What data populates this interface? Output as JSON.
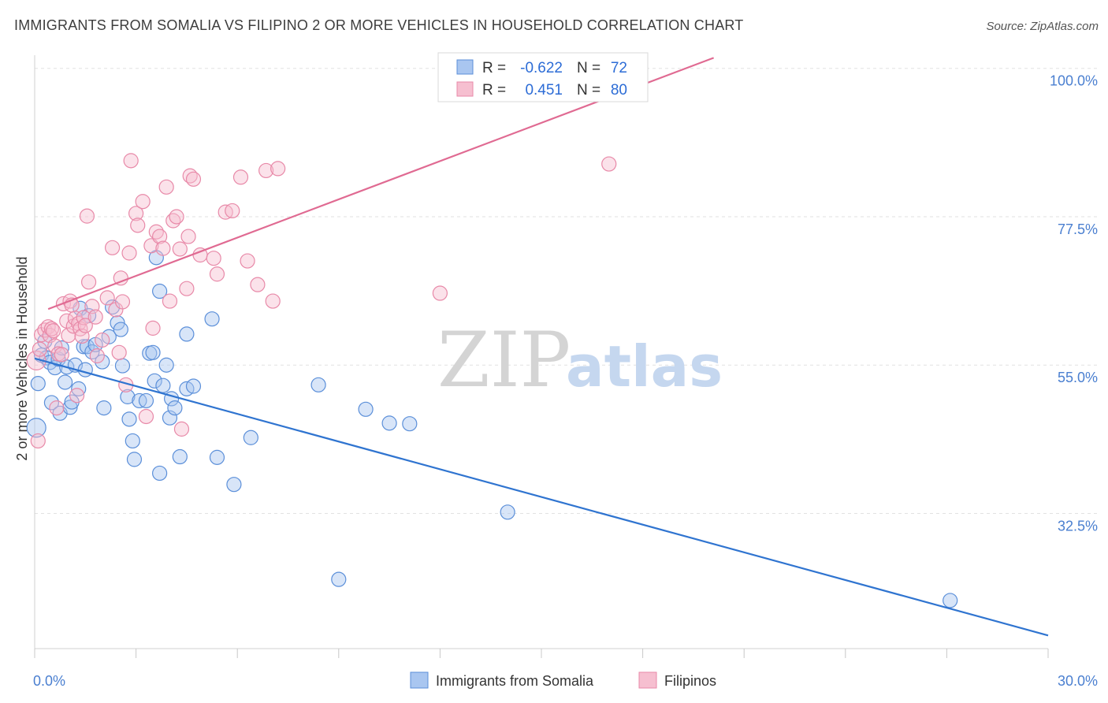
{
  "header": {
    "title": "IMMIGRANTS FROM SOMALIA VS FILIPINO 2 OR MORE VEHICLES IN HOUSEHOLD CORRELATION CHART",
    "source": "Source: ZipAtlas.com"
  },
  "watermark": {
    "zip": "ZIP",
    "atlas": "atlas"
  },
  "colors": {
    "somalia_fill": "#a9c6f0",
    "somalia_stroke": "#5b8fd9",
    "somalia_line": "#2f74d0",
    "filipino_fill": "#f6bfd0",
    "filipino_stroke": "#e889a8",
    "filipino_line": "#e06a92",
    "grid": "#e2e2e2",
    "tick_text": "#4a7fd0"
  },
  "legend": {
    "rows": [
      {
        "r_label": "R =",
        "r_value": "-0.622",
        "n_label": "N =",
        "n_value": "72"
      },
      {
        "r_label": "R =",
        "r_value": "0.451",
        "n_label": "N =",
        "n_value": "80"
      }
    ]
  },
  "chart_data": {
    "type": "scatter",
    "title": "IMMIGRANTS FROM SOMALIA VS FILIPINO 2 OR MORE VEHICLES IN HOUSEHOLD CORRELATION CHART",
    "xlabel": "",
    "ylabel": "2 or more Vehicles in Household",
    "xlim": [
      0,
      30
    ],
    "ylim": [
      12,
      102
    ],
    "x_tick_labels": [
      {
        "value": 0,
        "label": "0.0%"
      },
      {
        "value": 30,
        "label": "30.0%"
      }
    ],
    "y_tick_labels": [
      {
        "value": 100,
        "label": "100.0%"
      },
      {
        "value": 77.5,
        "label": "77.5%"
      },
      {
        "value": 55,
        "label": "55.0%"
      },
      {
        "value": 32.5,
        "label": "32.5%"
      }
    ],
    "grid": true,
    "legend_position": "top-center",
    "series": [
      {
        "name": "Immigrants from Somalia",
        "r": -0.622,
        "n": 72,
        "trend": {
          "x": [
            0,
            30
          ],
          "y": [
            56,
            14
          ]
        },
        "points": [
          [
            0.05,
            45.5
          ],
          [
            0.1,
            52.2
          ],
          [
            0.2,
            56.5
          ],
          [
            0.3,
            58.6
          ],
          [
            0.35,
            56.1
          ],
          [
            0.45,
            55.4
          ],
          [
            0.5,
            49.3
          ],
          [
            0.6,
            54.6
          ],
          [
            0.7,
            55.9
          ],
          [
            0.75,
            47.7
          ],
          [
            0.8,
            57.6
          ],
          [
            0.9,
            52.4
          ],
          [
            0.95,
            54.7
          ],
          [
            1.05,
            48.6
          ],
          [
            1.1,
            49.4
          ],
          [
            1.2,
            55.0
          ],
          [
            1.3,
            51.4
          ],
          [
            1.35,
            63.6
          ],
          [
            1.45,
            57.8
          ],
          [
            1.5,
            54.3
          ],
          [
            1.55,
            57.8
          ],
          [
            1.6,
            62.5
          ],
          [
            1.7,
            57.0
          ],
          [
            1.8,
            58.1
          ],
          [
            2.0,
            55.5
          ],
          [
            2.05,
            48.5
          ],
          [
            2.2,
            59.3
          ],
          [
            2.3,
            63.8
          ],
          [
            2.45,
            61.4
          ],
          [
            2.55,
            60.4
          ],
          [
            2.6,
            54.9
          ],
          [
            2.75,
            50.2
          ],
          [
            2.8,
            46.8
          ],
          [
            2.9,
            43.5
          ],
          [
            2.95,
            40.7
          ],
          [
            3.1,
            49.6
          ],
          [
            3.3,
            49.6
          ],
          [
            3.4,
            56.8
          ],
          [
            3.5,
            56.9
          ],
          [
            3.55,
            52.6
          ],
          [
            3.6,
            71.3
          ],
          [
            3.7,
            66.2
          ],
          [
            3.7,
            38.6
          ],
          [
            3.8,
            51.9
          ],
          [
            3.9,
            55.0
          ],
          [
            4.0,
            47.0
          ],
          [
            4.05,
            49.9
          ],
          [
            4.15,
            48.5
          ],
          [
            4.3,
            41.1
          ],
          [
            4.5,
            59.7
          ],
          [
            4.5,
            51.4
          ],
          [
            4.7,
            51.8
          ],
          [
            5.25,
            62.0
          ],
          [
            5.4,
            41.0
          ],
          [
            5.9,
            36.9
          ],
          [
            6.4,
            44.0
          ],
          [
            8.4,
            52.0
          ],
          [
            9.0,
            22.5
          ],
          [
            9.8,
            48.3
          ],
          [
            10.5,
            46.2
          ],
          [
            11.1,
            46.1
          ],
          [
            14.0,
            32.7
          ],
          [
            27.1,
            19.3
          ]
        ]
      },
      {
        "name": "Filipinos",
        "r": 0.451,
        "n": 80,
        "trend": {
          "x": [
            0.4,
            20.1
          ],
          "y": [
            63.5,
            101.6
          ]
        },
        "points": [
          [
            0.05,
            55.7
          ],
          [
            0.1,
            43.5
          ],
          [
            0.15,
            57.4
          ],
          [
            0.2,
            59.6
          ],
          [
            0.3,
            60.3
          ],
          [
            0.4,
            60.8
          ],
          [
            0.45,
            59.5
          ],
          [
            0.5,
            60.5
          ],
          [
            0.55,
            60.2
          ],
          [
            0.6,
            57.9
          ],
          [
            0.65,
            48.5
          ],
          [
            0.7,
            56.7
          ],
          [
            0.8,
            56.6
          ],
          [
            0.85,
            64.3
          ],
          [
            0.95,
            61.7
          ],
          [
            1.0,
            59.5
          ],
          [
            1.05,
            64.7
          ],
          [
            1.1,
            64.1
          ],
          [
            1.15,
            60.9
          ],
          [
            1.2,
            62.1
          ],
          [
            1.25,
            50.4
          ],
          [
            1.3,
            61.3
          ],
          [
            1.35,
            60.5
          ],
          [
            1.4,
            59.4
          ],
          [
            1.45,
            62.2
          ],
          [
            1.5,
            61.0
          ],
          [
            1.55,
            77.6
          ],
          [
            1.6,
            67.6
          ],
          [
            1.7,
            63.9
          ],
          [
            1.8,
            62.3
          ],
          [
            1.85,
            56.4
          ],
          [
            2.0,
            58.8
          ],
          [
            2.15,
            65.2
          ],
          [
            2.3,
            72.8
          ],
          [
            2.4,
            63.4
          ],
          [
            2.5,
            56.9
          ],
          [
            2.55,
            68.2
          ],
          [
            2.6,
            64.6
          ],
          [
            2.7,
            52.0
          ],
          [
            2.8,
            72.0
          ],
          [
            2.85,
            86.0
          ],
          [
            3.0,
            78.0
          ],
          [
            3.05,
            76.2
          ],
          [
            3.2,
            79.8
          ],
          [
            3.3,
            47.2
          ],
          [
            3.45,
            73.1
          ],
          [
            3.5,
            60.6
          ],
          [
            3.6,
            75.2
          ],
          [
            3.7,
            74.5
          ],
          [
            3.8,
            72.7
          ],
          [
            3.9,
            82.0
          ],
          [
            4.0,
            64.7
          ],
          [
            4.1,
            76.9
          ],
          [
            4.2,
            77.5
          ],
          [
            4.3,
            72.6
          ],
          [
            4.35,
            45.3
          ],
          [
            4.5,
            66.6
          ],
          [
            4.55,
            74.5
          ],
          [
            4.6,
            83.7
          ],
          [
            4.7,
            83.2
          ],
          [
            4.9,
            71.7
          ],
          [
            5.3,
            71.2
          ],
          [
            5.4,
            68.8
          ],
          [
            5.65,
            78.2
          ],
          [
            5.85,
            78.4
          ],
          [
            6.1,
            83.5
          ],
          [
            6.3,
            70.8
          ],
          [
            6.6,
            67.2
          ],
          [
            6.85,
            84.5
          ],
          [
            7.05,
            64.7
          ],
          [
            7.2,
            84.8
          ],
          [
            12.0,
            65.9
          ],
          [
            17.0,
            85.5
          ]
        ]
      }
    ]
  },
  "bottom_legend": {
    "items": [
      {
        "label": "Immigrants from Somalia"
      },
      {
        "label": "Filipinos"
      }
    ]
  }
}
